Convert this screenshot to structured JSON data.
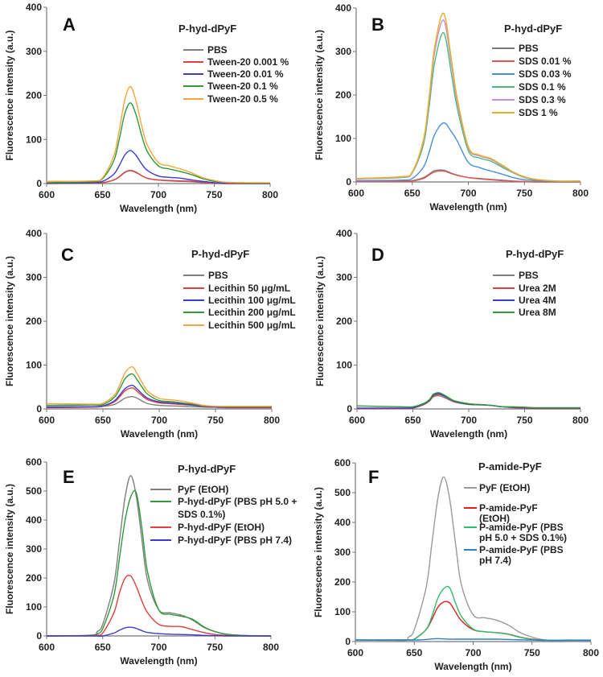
{
  "chart_data": [
    {
      "type": "line",
      "panel_label": "A",
      "title": "P-hyd-dPyF",
      "xlabel": "Wavelength (nm)",
      "ylabel": "Fluorescence intensity (a.u.)",
      "xlim": [
        600,
        800
      ],
      "ylim": [
        0,
        400
      ],
      "xticks": [
        600,
        650,
        700,
        750,
        800
      ],
      "yticks": [
        0,
        100,
        200,
        300,
        400
      ],
      "legend": "top-right",
      "x": [
        600,
        640,
        650,
        660,
        665,
        670,
        675,
        680,
        685,
        690,
        700,
        710,
        720,
        730,
        740,
        750,
        760,
        780,
        800
      ],
      "series": [
        {
          "name": "PBS",
          "color": "#808080",
          "values": [
            0,
            1,
            2,
            8,
            16,
            26,
            30,
            26,
            18,
            12,
            8,
            6,
            5,
            4,
            2,
            1,
            0,
            0,
            0
          ]
        },
        {
          "name": "Tween-20 0.001 %",
          "color": "#e0413c",
          "values": [
            0,
            1,
            2,
            8,
            15,
            25,
            29,
            25,
            18,
            12,
            8,
            7,
            6,
            5,
            3,
            1,
            0,
            0,
            0
          ]
        },
        {
          "name": "Tween-20 0.01 %",
          "color": "#3b3bd0",
          "values": [
            1,
            2,
            5,
            21,
            41,
            65,
            75,
            64,
            45,
            30,
            17,
            14,
            12,
            8,
            5,
            2,
            1,
            0,
            0
          ]
        },
        {
          "name": "Tween-20 0.1 %",
          "color": "#2e9a3a",
          "values": [
            2,
            4,
            11,
            51,
            101,
            159,
            183,
            156,
            110,
            73,
            40,
            33,
            27,
            20,
            11,
            5,
            3,
            1,
            1
          ]
        },
        {
          "name": "Tween-20 0.5 %",
          "color": "#f5a63a",
          "values": [
            5,
            6,
            13,
            62,
            121,
            191,
            220,
            187,
            132,
            88,
            48,
            40,
            33,
            24,
            13,
            7,
            3,
            2,
            2
          ]
        }
      ]
    },
    {
      "type": "line",
      "panel_label": "B",
      "title": "P-hyd-dPyF",
      "xlabel": "Wavelength (nm)",
      "ylabel": "Fluorescence intensity (a.u.)",
      "xlim": [
        600,
        800
      ],
      "ylim": [
        0,
        400
      ],
      "xticks": [
        600,
        650,
        700,
        750,
        800
      ],
      "yticks": [
        0,
        100,
        200,
        300,
        400
      ],
      "legend": "top-right",
      "x": [
        600,
        640,
        650,
        660,
        665,
        670,
        678,
        685,
        690,
        700,
        710,
        720,
        730,
        740,
        750,
        760,
        780,
        800
      ],
      "series": [
        {
          "name": "PBS",
          "color": "#7a7a7a",
          "values": [
            2,
            2,
            3,
            10,
            18,
            26,
            27,
            20,
            16,
            10,
            8,
            6,
            4,
            2,
            1,
            0,
            0,
            0
          ]
        },
        {
          "name": "SDS 0.01 %",
          "color": "#e05555",
          "values": [
            1,
            1,
            2,
            8,
            16,
            23,
            25,
            19,
            15,
            10,
            7,
            5,
            3,
            2,
            1,
            0,
            0,
            0
          ]
        },
        {
          "name": "SDS 0.03 %",
          "color": "#4a8ed8",
          "values": [
            3,
            4,
            8,
            34,
            68,
            109,
            136,
            115,
            95,
            45,
            33,
            25,
            18,
            10,
            5,
            3,
            1,
            1
          ]
        },
        {
          "name": "SDS 0.1 %",
          "color": "#4cbb7a",
          "values": [
            7,
            10,
            21,
            86,
            172,
            274,
            343,
            247,
            172,
            72,
            55,
            48,
            34,
            21,
            10,
            5,
            2,
            2
          ]
        },
        {
          "name": "SDS 0.3 %",
          "color": "#c48ee8",
          "values": [
            7,
            11,
            22,
            93,
            186,
            298,
            372,
            268,
            186,
            78,
            60,
            52,
            37,
            22,
            11,
            6,
            2,
            2
          ]
        },
        {
          "name": "SDS 1 %",
          "color": "#e8b020",
          "values": [
            8,
            12,
            23,
            97,
            194,
            310,
            388,
            279,
            194,
            81,
            62,
            54,
            39,
            23,
            12,
            6,
            2,
            2
          ]
        }
      ]
    },
    {
      "type": "line",
      "panel_label": "C",
      "title": "P-hyd-dPyF",
      "xlabel": "Wavelength (nm)",
      "ylabel": "Fluorescence intensity (a.u.)",
      "xlim": [
        600,
        800
      ],
      "ylim": [
        0,
        400
      ],
      "xticks": [
        600,
        650,
        700,
        750,
        800
      ],
      "yticks": [
        0,
        100,
        200,
        300,
        400
      ],
      "legend": "top-right",
      "x": [
        600,
        640,
        650,
        660,
        665,
        670,
        676,
        680,
        685,
        690,
        700,
        710,
        720,
        730,
        740,
        750,
        760,
        780,
        800
      ],
      "series": [
        {
          "name": "PBS",
          "color": "#808080",
          "values": [
            5,
            5,
            6,
            10,
            17,
            25,
            28,
            25,
            18,
            12,
            8,
            7,
            6,
            5,
            4,
            4,
            3,
            3,
            3
          ]
        },
        {
          "name": "Lecithin 50 μg/mL",
          "color": "#e0413c",
          "values": [
            3,
            4,
            6,
            16,
            28,
            42,
            48,
            41,
            30,
            21,
            14,
            12,
            10,
            8,
            5,
            4,
            3,
            3,
            3
          ]
        },
        {
          "name": "Lecithin 100 μg/mL",
          "color": "#3b3bd0",
          "values": [
            4,
            5,
            7,
            18,
            32,
            47,
            54,
            46,
            34,
            24,
            16,
            14,
            12,
            9,
            6,
            4,
            4,
            4,
            4
          ]
        },
        {
          "name": "Lecithin 200 μg/mL",
          "color": "#2e9a3a",
          "values": [
            8,
            9,
            10,
            26,
            46,
            70,
            80,
            68,
            49,
            33,
            19,
            17,
            14,
            11,
            7,
            6,
            5,
            5,
            5
          ]
        },
        {
          "name": "Lecithin 500 μg/mL",
          "color": "#f5a63a",
          "values": [
            12,
            11,
            13,
            31,
            55,
            84,
            96,
            82,
            59,
            40,
            24,
            21,
            18,
            13,
            8,
            6,
            6,
            6,
            6
          ]
        }
      ]
    },
    {
      "type": "line",
      "panel_label": "D",
      "title": "P-hyd-dPyF",
      "xlabel": "Wavelength (nm)",
      "ylabel": "Fluorescence intensity (a.u.)",
      "xlim": [
        600,
        800
      ],
      "ylim": [
        0,
        400
      ],
      "xticks": [
        600,
        650,
        700,
        750,
        800
      ],
      "yticks": [
        0,
        100,
        200,
        300,
        400
      ],
      "legend": "top-right",
      "x": [
        600,
        640,
        650,
        660,
        665,
        668,
        673,
        678,
        683,
        688,
        700,
        710,
        720,
        730,
        740,
        750,
        760,
        780,
        800
      ],
      "series": [
        {
          "name": "PBS",
          "color": "#808080",
          "values": [
            1,
            1,
            2,
            10,
            18,
            27,
            30,
            26,
            20,
            15,
            10,
            9,
            8,
            5,
            3,
            2,
            1,
            1,
            1
          ]
        },
        {
          "name": "Urea 2M",
          "color": "#e0413c",
          "values": [
            1,
            1,
            2,
            11,
            20,
            29,
            33,
            29,
            22,
            16,
            11,
            10,
            8,
            5,
            3,
            2,
            1,
            1,
            1
          ]
        },
        {
          "name": "Urea 4M",
          "color": "#3b3bd0",
          "values": [
            2,
            2,
            3,
            12,
            21,
            31,
            35,
            30,
            23,
            17,
            11,
            10,
            8,
            5,
            4,
            3,
            2,
            2,
            2
          ]
        },
        {
          "name": "Urea 8M",
          "color": "#2e9a3a",
          "values": [
            7,
            5,
            5,
            13,
            22,
            33,
            37,
            32,
            24,
            18,
            12,
            10,
            8,
            5,
            5,
            4,
            3,
            3,
            3
          ]
        }
      ]
    },
    {
      "type": "line",
      "panel_label": "E",
      "title": "P-hyd-dPyF",
      "xlabel": "Wavelength (nm)",
      "ylabel": "Fluorescence intensity (a.u.)",
      "xlim": [
        600,
        800
      ],
      "ylim": [
        0,
        600
      ],
      "xticks": [
        600,
        650,
        700,
        750,
        800
      ],
      "yticks": [
        0,
        100,
        200,
        300,
        400,
        500,
        600
      ],
      "legend": "top-right",
      "x": [
        600,
        640,
        645,
        650,
        660,
        665,
        670,
        675,
        680,
        685,
        690,
        700,
        710,
        720,
        730,
        740,
        750,
        760,
        780,
        800
      ],
      "series": [
        {
          "name": "PyF (EtOH)",
          "name_lines": [
            "PyF (EtOH)"
          ],
          "color": "#808080",
          "values": [
            0,
            3,
            15,
            40,
            180,
            330,
            480,
            553,
            480,
            330,
            190,
            90,
            80,
            72,
            55,
            30,
            15,
            6,
            1,
            0
          ]
        },
        {
          "name": "P-hyd-dPyF (PBS pH 5.0 + SDS 0.1%)",
          "name_lines": [
            "P-hyd-dPyF (PBS pH 5.0 +",
            "SDS 0.1%)"
          ],
          "color": "#2e9a3a",
          "values": [
            0,
            2,
            8,
            25,
            140,
            270,
            400,
            480,
            493,
            370,
            220,
            90,
            75,
            68,
            58,
            32,
            15,
            6,
            1,
            0
          ]
        },
        {
          "name": "P-hyd-dPyF (EtOH)",
          "name_lines": [
            "P-hyd-dPyF (EtOH)"
          ],
          "color": "#e0413c",
          "values": [
            0,
            1,
            3,
            10,
            80,
            150,
            200,
            207,
            170,
            120,
            80,
            40,
            33,
            32,
            22,
            12,
            5,
            2,
            0,
            0
          ]
        },
        {
          "name": "P-hyd-dPyF (PBS pH 7.4)",
          "name_lines": [
            "P-hyd-dPyF (PBS pH 7.4)"
          ],
          "color": "#3b3bd0",
          "values": [
            0,
            0,
            0,
            0,
            10,
            20,
            28,
            30,
            26,
            18,
            12,
            8,
            6,
            5,
            4,
            2,
            1,
            0,
            0,
            0
          ]
        }
      ]
    },
    {
      "type": "line",
      "panel_label": "F",
      "title": "P-amide-PyF",
      "xlabel": "Wavelength (nm)",
      "ylabel": "Fluorescence intensity (a.u.)",
      "xlim": [
        600,
        800
      ],
      "ylim": [
        0,
        600
      ],
      "xticks": [
        600,
        650,
        700,
        750,
        800
      ],
      "yticks": [
        0,
        100,
        200,
        300,
        400,
        500,
        600
      ],
      "legend": "top-right",
      "x": [
        600,
        640,
        645,
        650,
        660,
        665,
        670,
        675,
        680,
        685,
        690,
        700,
        710,
        720,
        730,
        740,
        750,
        760,
        780,
        800
      ],
      "series": [
        {
          "name": "PyF (EtOH)",
          "name_lines": [
            "PyF (EtOH)"
          ],
          "color": "#9a9a9a",
          "values": [
            0,
            3,
            15,
            40,
            180,
            330,
            480,
            553,
            480,
            330,
            190,
            90,
            80,
            72,
            55,
            30,
            15,
            6,
            1,
            0
          ]
        },
        {
          "name": "P-amide-PyF (EtOH)",
          "name_lines": [
            "P-amide-PyF",
            "(EtOH)"
          ],
          "color": "#e02020",
          "values": [
            5,
            5,
            6,
            8,
            40,
            75,
            115,
            133,
            130,
            100,
            70,
            40,
            33,
            30,
            25,
            15,
            8,
            5,
            4,
            4
          ]
        },
        {
          "name": "P-amide-PyF (PBS pH 5.0 + SDS 0.1%)",
          "name_lines": [
            "P-amide-PyF (PBS",
            "pH 5.0 + SDS 0.1%)"
          ],
          "color": "#2ebd6a",
          "values": [
            6,
            6,
            6,
            8,
            40,
            85,
            145,
            178,
            181,
            130,
            85,
            42,
            33,
            30,
            24,
            14,
            7,
            5,
            5,
            5
          ]
        },
        {
          "name": "P-amide-PyF (PBS pH 7.4)",
          "name_lines": [
            "P-amide-PyF (PBS",
            "pH 7.4)"
          ],
          "color": "#2a80d0",
          "values": [
            5,
            5,
            5,
            5,
            7,
            9,
            10,
            9,
            8,
            8,
            8,
            8,
            8,
            8,
            7,
            6,
            5,
            4,
            4,
            4
          ]
        }
      ]
    }
  ]
}
